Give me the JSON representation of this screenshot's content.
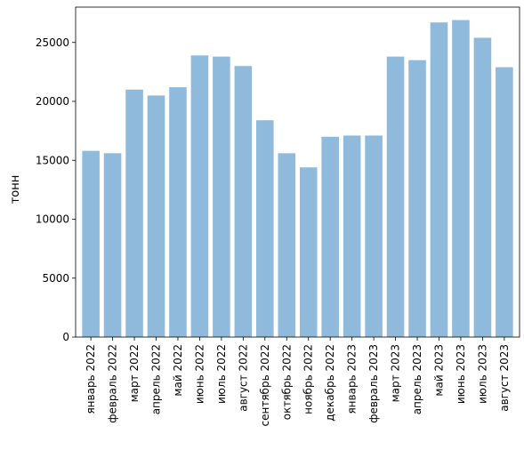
{
  "chart_data": {
    "type": "bar",
    "title": "",
    "xlabel": "",
    "ylabel": "тонн",
    "categories": [
      "январь 2022",
      "февраль 2022",
      "март 2022",
      "апрель 2022",
      "май 2022",
      "июнь 2022",
      "июль 2022",
      "август 2022",
      "сентябрь 2022",
      "октябрь 2022",
      "ноябрь 2022",
      "декабрь 2022",
      "январь 2023",
      "февраль 2023",
      "март 2023",
      "апрель 2023",
      "май 2023",
      "июнь 2023",
      "июль 2023",
      "август 2023"
    ],
    "values": [
      15800,
      15600,
      21000,
      20500,
      21200,
      23900,
      23800,
      23000,
      18400,
      15600,
      14400,
      17000,
      17100,
      17100,
      23800,
      23500,
      26700,
      26900,
      25400,
      22900
    ],
    "ylim": [
      0,
      28000
    ],
    "yticks": [
      0,
      5000,
      10000,
      15000,
      20000,
      25000
    ],
    "grid": false,
    "bar_color": "#8fbadb"
  }
}
